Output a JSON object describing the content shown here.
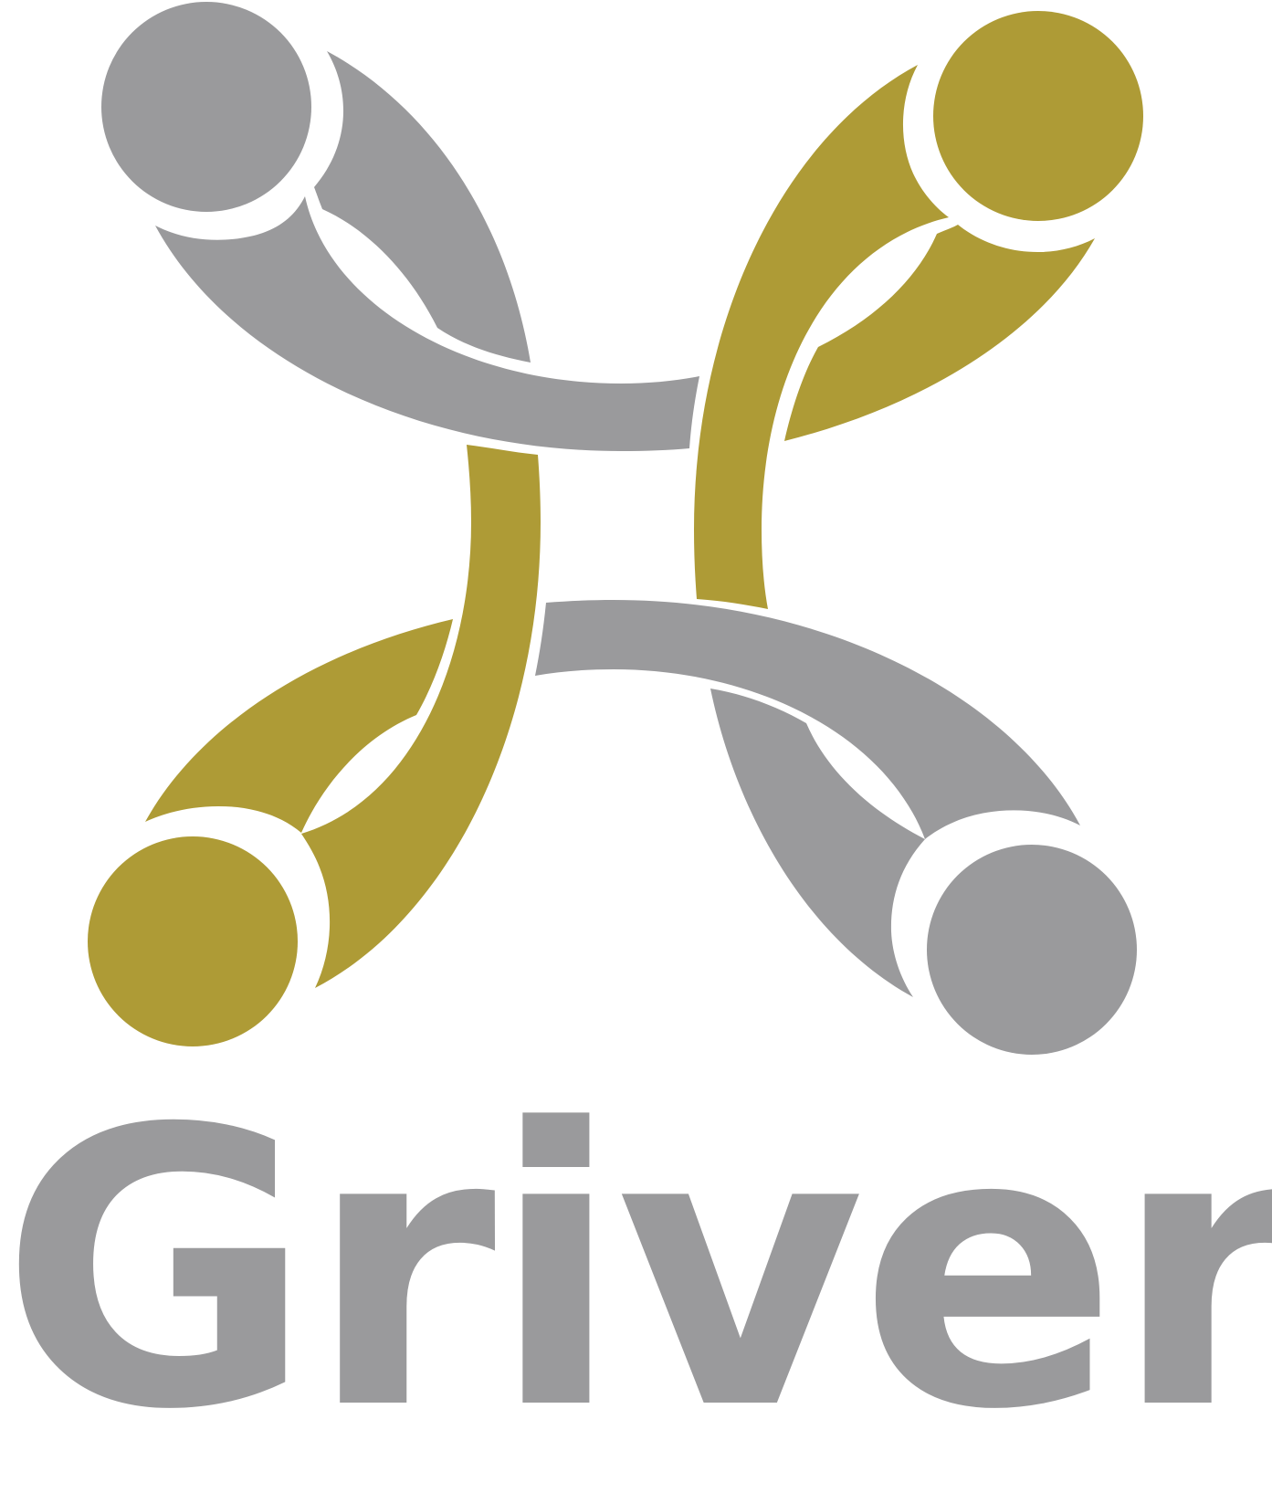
{
  "brand": {
    "name": "Griver",
    "colors": {
      "gray": "#9a9a9c",
      "gold": "#ae9b36",
      "background": "#ffffff"
    }
  },
  "emblem": {
    "icon": "four-figures-circle-logo-icon"
  }
}
